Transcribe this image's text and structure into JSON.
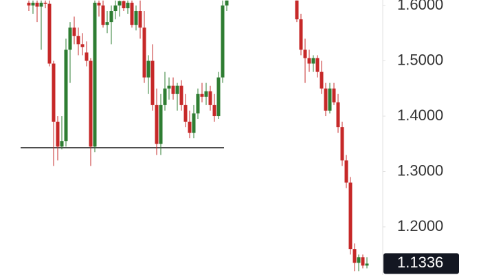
{
  "chart_data": {
    "type": "candlestick",
    "categories": [
      null,
      null,
      null,
      null,
      null,
      null,
      null,
      null,
      null,
      null,
      null,
      null,
      null,
      null,
      null,
      null,
      null,
      null,
      null,
      null,
      null,
      null,
      null,
      null,
      null,
      null,
      null,
      null,
      null,
      null,
      null,
      null,
      null,
      null,
      null,
      null,
      null,
      null,
      null,
      null,
      null,
      null,
      null,
      null,
      null,
      null,
      null,
      null,
      null,
      null,
      null,
      null,
      null,
      null,
      null,
      null,
      null,
      null,
      null,
      null,
      null,
      null,
      null,
      null,
      null,
      null,
      null,
      null,
      null,
      null,
      null,
      null,
      null,
      null,
      null,
      null,
      null,
      null,
      null,
      null,
      null,
      null,
      null
    ],
    "open": [
      1.605,
      1.6,
      1.605,
      1.598,
      1.605,
      1.603,
      1.495,
      1.39,
      1.345,
      1.355,
      1.52,
      1.56,
      1.545,
      1.53,
      1.515,
      1.5,
      1.345,
      1.605,
      1.6,
      1.565,
      1.57,
      1.59,
      1.6,
      1.608,
      1.595,
      1.605,
      1.565,
      1.59,
      1.56,
      1.47,
      1.5,
      1.42,
      1.35,
      1.42,
      1.45,
      1.455,
      1.44,
      1.455,
      1.42,
      1.39,
      1.37,
      1.405,
      1.44,
      1.435,
      1.445,
      1.42,
      1.4,
      1.47,
      1.6,
      null,
      null,
      null,
      null,
      null,
      null,
      null,
      null,
      null,
      null,
      null,
      null,
      null,
      null,
      null,
      null,
      1.609,
      1.575,
      1.52,
      1.505,
      1.495,
      1.505,
      1.48,
      1.45,
      1.41,
      1.45,
      1.425,
      1.38,
      1.32,
      1.28,
      1.16,
      1.135,
      1.145,
      1.13
    ],
    "high": [
      1.609,
      1.609,
      1.609,
      1.609,
      1.609,
      1.609,
      1.5,
      1.4,
      1.4,
      1.54,
      1.57,
      1.58,
      1.56,
      1.55,
      1.535,
      1.505,
      1.609,
      1.609,
      1.609,
      1.59,
      1.6,
      1.609,
      1.609,
      1.609,
      1.609,
      1.609,
      1.6,
      1.609,
      1.59,
      1.51,
      1.53,
      1.45,
      1.44,
      1.48,
      1.47,
      1.47,
      1.46,
      1.465,
      1.44,
      1.41,
      1.42,
      1.45,
      1.46,
      1.46,
      1.455,
      1.44,
      1.48,
      1.609,
      1.609,
      null,
      null,
      null,
      null,
      null,
      null,
      null,
      null,
      null,
      null,
      null,
      null,
      null,
      null,
      null,
      null,
      1.609,
      1.585,
      1.54,
      1.52,
      1.51,
      1.51,
      1.5,
      1.46,
      1.46,
      1.46,
      1.44,
      1.39,
      1.33,
      1.29,
      1.17,
      1.15,
      1.15,
      1.145
    ],
    "low": [
      1.59,
      1.585,
      1.57,
      1.52,
      1.595,
      1.49,
      1.31,
      1.32,
      1.34,
      1.345,
      1.46,
      1.53,
      1.51,
      1.51,
      1.49,
      1.31,
      1.335,
      1.58,
      1.56,
      1.55,
      1.53,
      1.575,
      1.58,
      1.59,
      1.585,
      1.56,
      1.555,
      1.54,
      1.46,
      1.44,
      1.41,
      1.33,
      1.33,
      1.41,
      1.43,
      1.43,
      1.41,
      1.41,
      1.38,
      1.36,
      1.36,
      1.395,
      1.425,
      1.42,
      1.41,
      1.39,
      1.395,
      1.46,
      1.59,
      null,
      null,
      null,
      null,
      null,
      null,
      null,
      null,
      null,
      null,
      null,
      null,
      null,
      null,
      null,
      null,
      1.57,
      1.51,
      1.46,
      1.48,
      1.48,
      1.47,
      1.44,
      1.4,
      1.405,
      1.42,
      1.37,
      1.31,
      1.27,
      1.15,
      1.12,
      1.12,
      1.125,
      1.125
    ],
    "close": [
      1.6,
      1.605,
      1.598,
      1.605,
      1.603,
      1.495,
      1.39,
      1.345,
      1.355,
      1.52,
      1.56,
      1.545,
      1.53,
      1.525,
      1.5,
      1.345,
      1.605,
      1.6,
      1.565,
      1.57,
      1.59,
      1.6,
      1.608,
      1.595,
      1.605,
      1.565,
      1.59,
      1.56,
      1.47,
      1.5,
      1.42,
      1.35,
      1.42,
      1.45,
      1.455,
      1.44,
      1.455,
      1.42,
      1.39,
      1.37,
      1.405,
      1.44,
      1.435,
      1.445,
      1.42,
      1.4,
      1.47,
      1.6,
      1.609,
      null,
      null,
      null,
      null,
      null,
      null,
      null,
      null,
      null,
      null,
      null,
      null,
      null,
      null,
      null,
      null,
      1.575,
      1.52,
      1.505,
      1.495,
      1.505,
      1.48,
      1.45,
      1.41,
      1.45,
      1.425,
      1.38,
      1.32,
      1.28,
      1.16,
      1.135,
      1.145,
      1.13,
      1.1336
    ],
    "up_color": "#2e7d32",
    "down_color": "#c62828",
    "ylim": [
      1.113,
      1.6099
    ],
    "yticks": [
      {
        "value": 1.2,
        "label": "1.2000"
      },
      {
        "value": 1.3,
        "label": "1.3000"
      },
      {
        "value": 1.4,
        "label": "1.4000"
      },
      {
        "value": 1.5,
        "label": "1.5000"
      },
      {
        "value": 1.6,
        "label": "1.6000"
      }
    ],
    "support_line": 1.343,
    "last_price": {
      "value": 1.1336,
      "label": "1.1336"
    }
  }
}
